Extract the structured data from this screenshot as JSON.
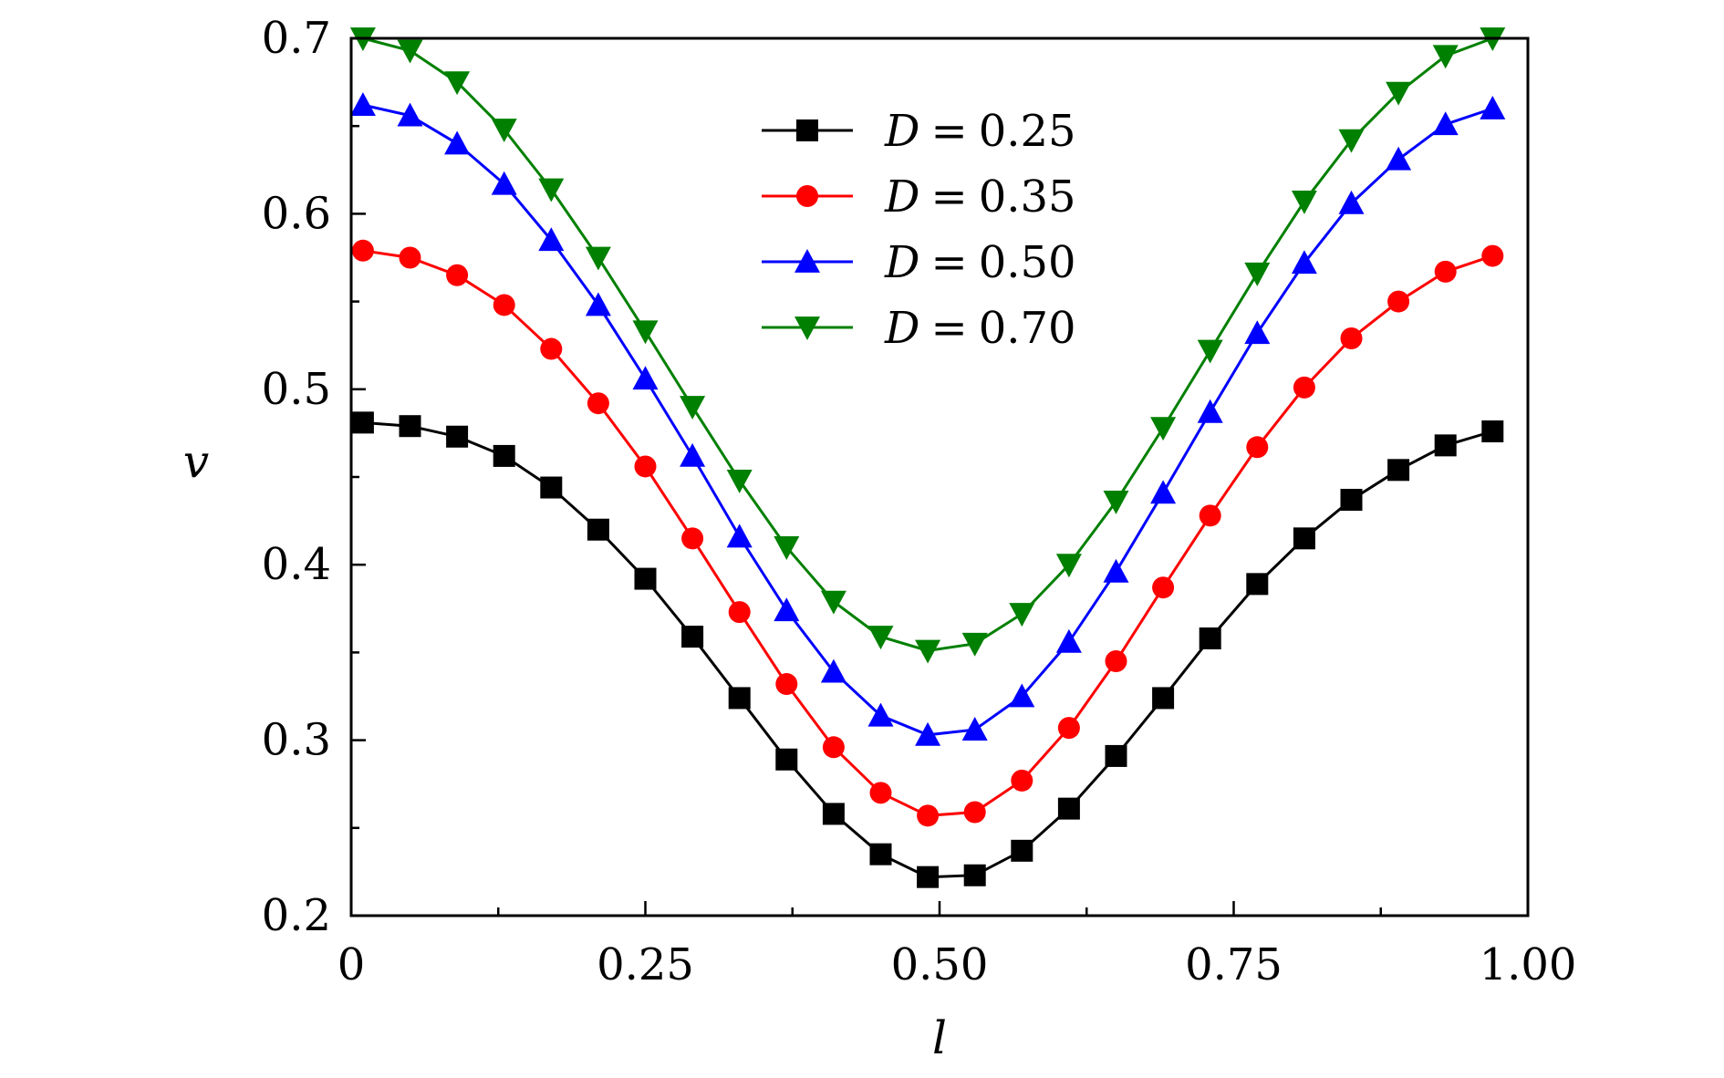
{
  "chart_data": {
    "type": "line",
    "xlabel": "l",
    "ylabel": "v",
    "xlim": [
      0,
      1.0
    ],
    "ylim": [
      0.2,
      0.7
    ],
    "xticks": [
      "0",
      "0.25",
      "0.50",
      "0.75",
      "1.00"
    ],
    "yticks": [
      "0.2",
      "0.3",
      "0.4",
      "0.5",
      "0.6",
      "0.7"
    ],
    "grid": false,
    "legend_position": "top-center",
    "x": [
      0.01,
      0.05,
      0.09,
      0.13,
      0.17,
      0.21,
      0.25,
      0.29,
      0.33,
      0.37,
      0.41,
      0.45,
      0.49,
      0.53,
      0.57,
      0.61,
      0.65,
      0.69,
      0.73,
      0.77,
      0.81,
      0.85,
      0.89,
      0.93,
      0.97
    ],
    "series": [
      {
        "name": "D = 0.25",
        "legend_var": "D",
        "legend_eq": "=",
        "legend_value": "0.25",
        "color": "#000000",
        "marker": "square",
        "values": [
          0.481,
          0.479,
          0.473,
          0.462,
          0.444,
          0.42,
          0.392,
          0.359,
          0.324,
          0.289,
          0.258,
          0.235,
          0.222,
          0.223,
          0.237,
          0.261,
          0.291,
          0.324,
          0.358,
          0.389,
          0.415,
          0.437,
          0.454,
          0.468,
          0.476
        ]
      },
      {
        "name": "D = 0.35",
        "legend_var": "D",
        "legend_eq": "=",
        "legend_value": "0.35",
        "color": "#ff0000",
        "marker": "circle",
        "values": [
          0.579,
          0.575,
          0.565,
          0.548,
          0.523,
          0.492,
          0.456,
          0.415,
          0.373,
          0.332,
          0.296,
          0.27,
          0.257,
          0.259,
          0.277,
          0.307,
          0.345,
          0.387,
          0.428,
          0.467,
          0.501,
          0.529,
          0.55,
          0.567,
          0.576
        ]
      },
      {
        "name": "D = 0.50",
        "legend_var": "D",
        "legend_eq": "=",
        "legend_value": "0.50",
        "color": "#0000ff",
        "marker": "triangle-up",
        "values": [
          0.662,
          0.656,
          0.64,
          0.617,
          0.585,
          0.548,
          0.506,
          0.462,
          0.416,
          0.374,
          0.339,
          0.314,
          0.303,
          0.306,
          0.325,
          0.356,
          0.396,
          0.441,
          0.487,
          0.532,
          0.572,
          0.606,
          0.631,
          0.651,
          0.66
        ]
      },
      {
        "name": "D = 0.70",
        "legend_var": "D",
        "legend_eq": "=",
        "legend_value": "0.70",
        "color": "#008000",
        "marker": "triangle-down",
        "values": [
          0.7,
          0.693,
          0.675,
          0.648,
          0.614,
          0.575,
          0.533,
          0.49,
          0.448,
          0.41,
          0.379,
          0.359,
          0.351,
          0.355,
          0.372,
          0.4,
          0.436,
          0.478,
          0.522,
          0.566,
          0.607,
          0.642,
          0.669,
          0.69,
          0.7
        ]
      }
    ]
  }
}
